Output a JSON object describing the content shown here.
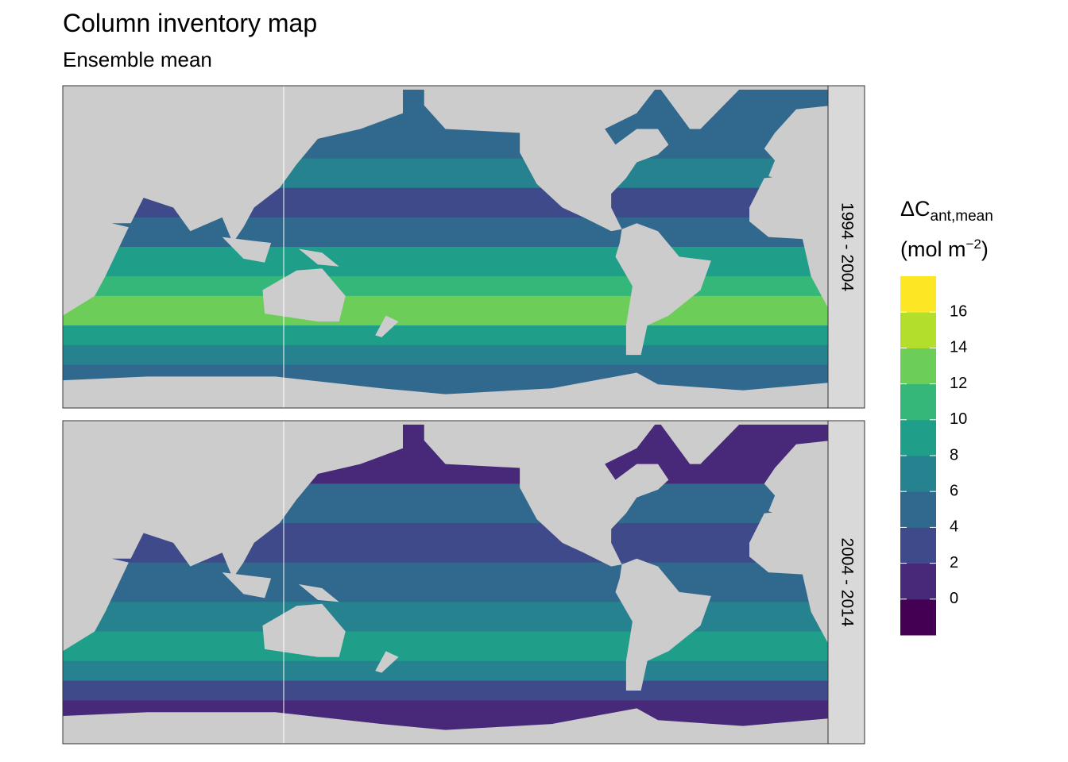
{
  "title": "Column inventory map",
  "subtitle": "Ensemble mean",
  "facets": [
    "1994 - 2004",
    "2004 - 2014"
  ],
  "legend": {
    "title_main": "ΔC",
    "title_sub": "ant,mean",
    "unit_main": "(mol m",
    "unit_sup": "−2",
    "unit_close": ")",
    "limits": [
      -2,
      18
    ],
    "breaks": [
      0,
      2,
      4,
      6,
      8,
      10,
      12,
      14,
      16
    ],
    "colors": [
      "#440154",
      "#482878",
      "#3E4A89",
      "#31688E",
      "#26828E",
      "#1F9E89",
      "#35B779",
      "#6DCD59",
      "#B4DE2C",
      "#FDE725"
    ]
  }
}
